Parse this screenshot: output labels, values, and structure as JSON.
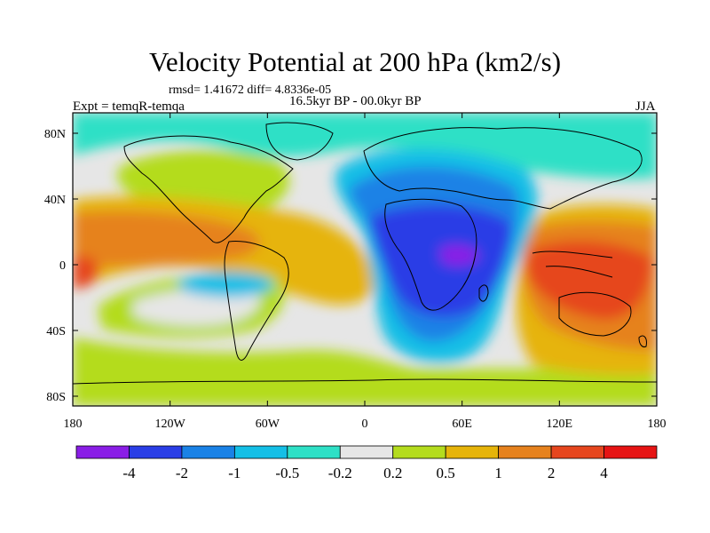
{
  "title": "Velocity Potential at 200 hPa (km2/s)",
  "stats": "rmsd= 1.41672 diff= 4.8336e-05",
  "period": "16.5kyr BP - 00.0kyr BP",
  "experiment": "Expt = temqR-temqa",
  "season": "JJA",
  "lat_ticks": [
    "80N",
    "40N",
    "0",
    "40S",
    "80S"
  ],
  "lon_ticks": [
    "180",
    "120W",
    "60W",
    "0",
    "60E",
    "120E",
    "180"
  ],
  "colorbar": {
    "labels": [
      "-4",
      "-2",
      "-1",
      "-0.5",
      "-0.2",
      "0.2",
      "0.5",
      "1",
      "2",
      "4"
    ],
    "colors": [
      "#8a1ee6",
      "#2a3ee6",
      "#1a82e6",
      "#14bfe6",
      "#2ee0c6",
      "#e6e6e6",
      "#b4dc1e",
      "#e6b40a",
      "#e6821e",
      "#e6461e",
      "#e61414"
    ]
  }
}
